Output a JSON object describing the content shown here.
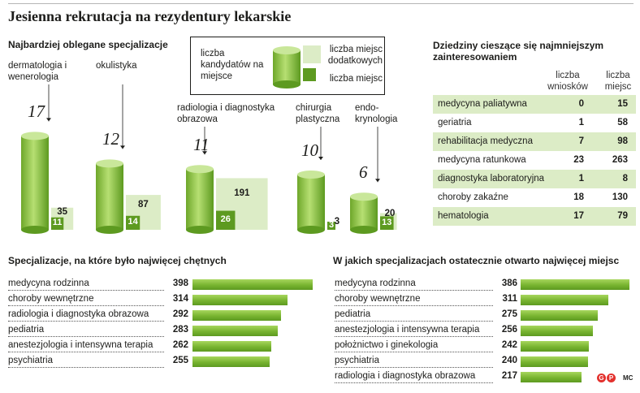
{
  "title": "Jesienna rekrutacja na rezydentury lekarskie",
  "credit": "MC",
  "logo_letters": [
    "G",
    "P"
  ],
  "colors": {
    "green_dark": "#5d9a20",
    "green_mid": "#78b430",
    "green_light": "#a7d65d",
    "pale_green": "#dcecc6",
    "text": "#1d1d1b"
  },
  "chart_data": [
    {
      "type": "bar",
      "title": "Najbardziej oblegane specjalizacje",
      "legend": {
        "candidates_per_place": "liczba kandydatów na miejsce",
        "additional_places": "liczba miejsc dodatkowych",
        "places": "liczba miejsc"
      },
      "categories": [
        "dermatologia i wenerologia",
        "okulistyka",
        "radiologia i diagnostyka obrazowa",
        "chirurgia plastyczna",
        "endo- krynologia"
      ],
      "series": [
        {
          "name": "liczba kandydatów na miejsce",
          "values": [
            17,
            12,
            11,
            10,
            6
          ]
        },
        {
          "name": "liczba miejsc dodatkowych",
          "values": [
            35,
            87,
            191,
            3,
            20
          ]
        },
        {
          "name": "liczba miejsc",
          "values": [
            11,
            14,
            26,
            3,
            13
          ]
        }
      ]
    },
    {
      "type": "table",
      "title": "Dziedziny cieszące się najmniejszym zainteresowaniem",
      "columns": [
        "liczba wniosków",
        "liczba miejsc"
      ],
      "rows": [
        {
          "name": "medycyna paliatywna",
          "values": [
            0,
            15
          ]
        },
        {
          "name": "geriatria",
          "values": [
            1,
            58
          ]
        },
        {
          "name": "rehabilitacja medyczna",
          "values": [
            7,
            98
          ]
        },
        {
          "name": "medycyna ratunkowa",
          "values": [
            23,
            263
          ]
        },
        {
          "name": "diagnostyka laboratoryjna",
          "values": [
            1,
            8
          ]
        },
        {
          "name": "choroby zakaźne",
          "values": [
            18,
            130
          ]
        },
        {
          "name": "hematologia",
          "values": [
            17,
            79
          ]
        }
      ]
    },
    {
      "type": "bar",
      "orientation": "horizontal",
      "title": "Specjalizacje, na które było najwięcej chętnych",
      "categories": [
        "medycyna rodzinna",
        "choroby wewnętrzne",
        "radiologia i diagnostyka obrazowa",
        "pediatria",
        "anestezjologia i intensywna terapia",
        "psychiatria"
      ],
      "values": [
        398,
        314,
        292,
        283,
        262,
        255
      ]
    },
    {
      "type": "bar",
      "orientation": "horizontal",
      "title": "W jakich specjalizacjach ostatecznie otwarto najwięcej miejsc",
      "categories": [
        "medycyna rodzinna",
        "choroby wewnętrzne",
        "pediatria",
        "anestezjologia i intensywna terapia",
        "położnictwo i ginekologia",
        "psychiatria",
        "radiologia i diagnostyka obrazowa"
      ],
      "values": [
        386,
        311,
        275,
        256,
        242,
        240,
        217
      ]
    }
  ]
}
